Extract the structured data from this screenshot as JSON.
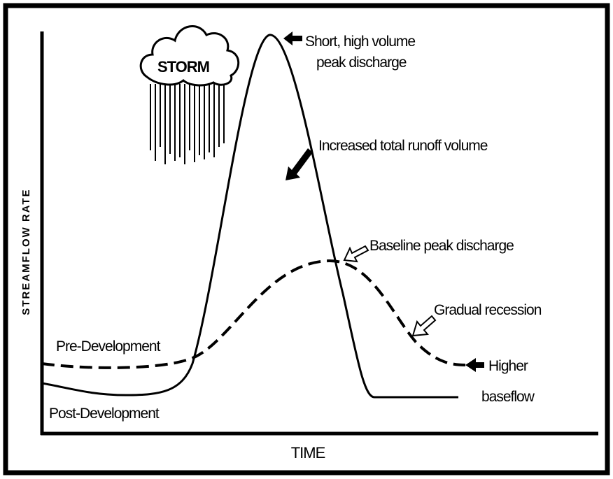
{
  "axes": {
    "y_label": "STREAMFLOW RATE",
    "x_label": "TIME"
  },
  "storm": "STORM",
  "curves": {
    "pre": "Pre-Development",
    "post": "Post-Development"
  },
  "annotations": {
    "peak": [
      "Short, high volume",
      "peak discharge"
    ],
    "volume": "Increased total runoff volume",
    "baseline": "Baseline peak discharge",
    "recession": "Gradual recession",
    "baseflow": [
      "Higher",
      "baseflow"
    ]
  }
}
